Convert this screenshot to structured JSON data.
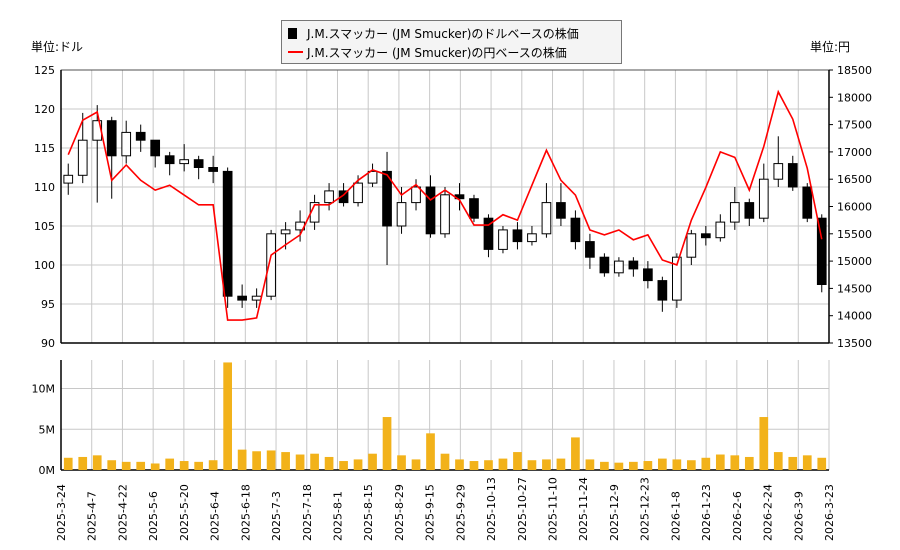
{
  "chart_data": [
    {
      "type": "candlestick+line",
      "legend": [
        "J.M.スマッカー (JM Smucker)のドルベースの株価",
        "J.M.スマッカー (JM Smucker)の円ベースの株価"
      ],
      "legend_placement": "top-center",
      "left_unit": "単位:ドル",
      "right_unit": "単位:円",
      "ylim_left": [
        90,
        125
      ],
      "yticks_left": [
        "90",
        "95",
        "100",
        "105",
        "110",
        "115",
        "120",
        "125"
      ],
      "ylim_right": [
        13500,
        18500
      ],
      "yticks_right": [
        "13500",
        "14000",
        "14500",
        "15000",
        "15500",
        "16000",
        "16500",
        "17000",
        "17500",
        "18000",
        "18500"
      ],
      "grid": true,
      "colors": {
        "usd_candle": "#000000",
        "jpy_line": "#ff0000"
      },
      "x_week_start": [
        "2025-3-24",
        "2025-3-31",
        "2025-4-7",
        "2025-4-14",
        "2025-4-21",
        "2025-4-28",
        "2025-5-5",
        "2025-5-12",
        "2025-5-19",
        "2025-5-26",
        "2025-6-2",
        "2025-6-9",
        "2025-6-16",
        "2025-6-23",
        "2025-6-30",
        "2025-7-7",
        "2025-7-14",
        "2025-7-21",
        "2025-7-28",
        "2025-8-4",
        "2025-8-11",
        "2025-8-18",
        "2025-8-25",
        "2025-9-1",
        "2025-9-8",
        "2025-9-15",
        "2025-9-22",
        "2025-9-29",
        "2025-10-6",
        "2025-10-13",
        "2025-10-20",
        "2025-10-27",
        "2025-11-3",
        "2025-11-10",
        "2025-11-17",
        "2025-11-24",
        "2025-12-1",
        "2025-12-8",
        "2025-12-15",
        "2025-12-22",
        "2025-12-29",
        "2026-1-5",
        "2026-1-12",
        "2026-1-19",
        "2026-1-26",
        "2026-2-2",
        "2026-2-9",
        "2026-2-16",
        "2026-2-23",
        "2026-3-2",
        "2026-3-9",
        "2026-3-16",
        "2026-3-23"
      ],
      "usd_open": [
        110.5,
        111.5,
        116,
        118.5,
        114,
        117,
        116,
        114,
        113,
        113.5,
        112.5,
        112,
        96,
        95.5,
        96,
        104,
        104.5,
        105.5,
        108,
        109.5,
        108,
        110.5,
        112,
        105,
        108,
        110,
        104,
        109,
        108.5,
        106,
        102,
        104.5,
        103,
        104,
        108,
        106,
        103,
        101,
        99,
        100.5,
        99.5,
        98,
        95.5,
        101,
        104,
        103.5,
        105.5,
        108,
        106,
        111,
        113,
        110,
        106
      ],
      "usd_high": [
        113,
        119.5,
        120.5,
        119,
        118.5,
        118,
        115.5,
        114.5,
        115.5,
        114,
        114,
        112.5,
        97.5,
        97,
        104.5,
        105.5,
        107,
        109,
        110.5,
        110.5,
        111.5,
        113,
        114.5,
        110,
        111,
        111.5,
        110,
        110.5,
        109,
        106.5,
        105,
        105.5,
        105,
        110.5,
        110.5,
        107,
        104,
        101.5,
        101,
        101,
        100.5,
        98.5,
        101.5,
        104.5,
        105,
        106.5,
        110,
        108.5,
        113,
        116.5,
        114,
        110.5,
        106.5
      ],
      "usd_low": [
        109,
        110.5,
        108,
        108.5,
        113,
        114.5,
        112.5,
        111.5,
        112,
        111,
        110.5,
        94.5,
        94.5,
        94.5,
        95.5,
        102,
        103,
        104.5,
        107,
        107.5,
        107.5,
        110,
        100,
        104,
        107,
        103.5,
        103.5,
        107,
        105.5,
        101,
        101.5,
        102,
        102.5,
        103.5,
        105,
        102,
        99.5,
        98.5,
        98.5,
        98.5,
        97,
        94,
        94.5,
        100,
        102.5,
        103,
        104.5,
        105,
        105.5,
        110,
        109.5,
        105.5,
        96.5
      ],
      "usd_close": [
        111.5,
        116,
        118.5,
        114,
        117,
        116,
        114,
        113,
        113.5,
        112.5,
        112,
        96,
        95.5,
        96,
        104,
        104.5,
        105.5,
        108,
        109.5,
        108,
        110.5,
        112,
        105,
        108,
        110,
        104,
        109,
        108.5,
        106,
        102,
        104.5,
        103,
        104,
        108,
        106,
        103,
        101,
        99,
        100.5,
        99.5,
        98,
        95.5,
        101,
        104,
        103.5,
        105.5,
        108,
        106,
        111,
        113,
        110,
        106,
        97.5
      ],
      "jpy_close": [
        16950,
        17580,
        17730,
        16480,
        16760,
        16480,
        16300,
        16390,
        16210,
        16030,
        16030,
        13920,
        13920,
        13960,
        15110,
        15300,
        15480,
        16030,
        16030,
        16210,
        16480,
        16670,
        16580,
        16210,
        16400,
        16120,
        16300,
        16120,
        15660,
        15660,
        15850,
        15750,
        16390,
        17030,
        16480,
        16210,
        15570,
        15480,
        15570,
        15390,
        15480,
        15020,
        14930,
        15750,
        16350,
        17000,
        16900,
        16300,
        17100,
        18100,
        17600,
        16700,
        15400
      ],
      "volume_m": [
        1.5,
        1.6,
        1.8,
        1.2,
        1.0,
        1.0,
        0.8,
        1.4,
        1.1,
        1.0,
        1.2,
        13.2,
        2.5,
        2.3,
        2.4,
        2.2,
        1.9,
        2.0,
        1.6,
        1.1,
        1.3,
        2.0,
        6.5,
        1.8,
        1.3,
        4.5,
        2.0,
        1.3,
        1.1,
        1.2,
        1.4,
        2.2,
        1.2,
        1.3,
        1.4,
        4.0,
        1.3,
        1.0,
        0.9,
        1.0,
        1.1,
        1.4,
        1.3,
        1.2,
        1.5,
        1.9,
        1.8,
        1.6,
        6.5,
        2.2,
        1.6,
        1.8,
        1.5
      ],
      "volume_ylim": [
        0,
        13.5
      ],
      "volume_yticks": [
        "0M",
        "5M",
        "10M"
      ],
      "xticks": [
        "2025-3-24",
        "2025-4-7",
        "2025-4-22",
        "2025-5-6",
        "2025-5-20",
        "2025-6-4",
        "2025-6-18",
        "2025-7-3",
        "2025-7-18",
        "2025-8-1",
        "2025-8-15",
        "2025-8-29",
        "2025-9-15",
        "2025-9-29",
        "2025-10-13",
        "2025-10-27",
        "2025-11-10",
        "2025-11-24",
        "2025-12-9",
        "2025-12-23",
        "2026-1-8",
        "2026-1-23",
        "2026-2-6",
        "2026-2-24",
        "2026-3-9",
        "2026-3-23"
      ]
    }
  ]
}
